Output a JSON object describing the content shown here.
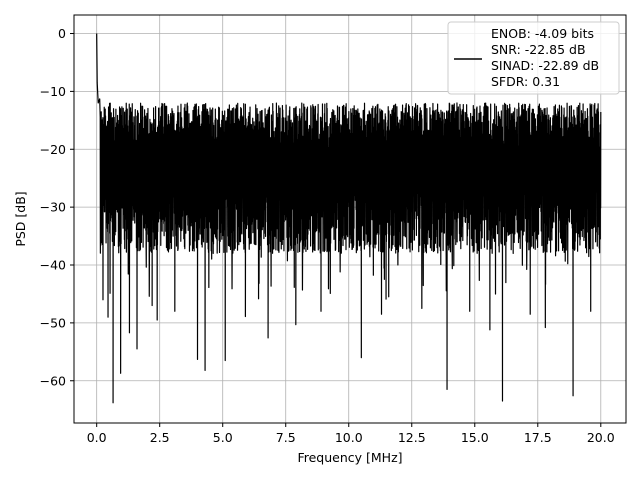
{
  "chart_data": {
    "type": "line",
    "title": "",
    "xlabel": "Frequency [MHz]",
    "ylabel": "PSD [dB]",
    "xlim": [
      -0.9,
      21.0
    ],
    "ylim": [
      -67.3,
      3.2
    ],
    "x_ticks": [
      0.0,
      2.5,
      5.0,
      7.5,
      10.0,
      12.5,
      15.0,
      17.5,
      20.0
    ],
    "x_tick_labels": [
      "0.0",
      "2.5",
      "5.0",
      "7.5",
      "10.0",
      "12.5",
      "15.0",
      "17.5",
      "20.0"
    ],
    "y_ticks": [
      0,
      -10,
      -20,
      -30,
      -40,
      -50,
      -60
    ],
    "y_tick_labels": [
      "0",
      "−10",
      "−20",
      "−30",
      "−40",
      "−50",
      "−60"
    ],
    "grid": true,
    "legend_position": "top-right",
    "line_color": "#000000",
    "series": [
      {
        "legend_lines": [
          "ENOB: -4.09 bits",
          "SNR: -22.85 dB",
          "SINAD: -22.89 dB",
          "SFDR: 0.31"
        ],
        "x_range": [
          0.0,
          20.0
        ],
        "noise_floor_band": [
          -38,
          -12
        ],
        "peaks": [
          {
            "x": 0.0,
            "y": 0.0
          },
          {
            "x": 0.02,
            "y": -8.5
          },
          {
            "x": 0.06,
            "y": -12.0
          },
          {
            "x": 0.12,
            "y": -11.3
          }
        ],
        "deep_dips": [
          {
            "x": 0.25,
            "y": -46.0
          },
          {
            "x": 0.45,
            "y": -49.0
          },
          {
            "x": 0.65,
            "y": -63.8
          },
          {
            "x": 0.95,
            "y": -58.7
          },
          {
            "x": 1.3,
            "y": -51.7
          },
          {
            "x": 1.6,
            "y": -54.5
          },
          {
            "x": 2.2,
            "y": -47.0
          },
          {
            "x": 2.4,
            "y": -49.5
          },
          {
            "x": 3.1,
            "y": -48.0
          },
          {
            "x": 4.0,
            "y": -56.3
          },
          {
            "x": 4.3,
            "y": -58.2
          },
          {
            "x": 5.1,
            "y": -56.5
          },
          {
            "x": 5.9,
            "y": -48.9
          },
          {
            "x": 6.8,
            "y": -52.6
          },
          {
            "x": 7.9,
            "y": -50.3
          },
          {
            "x": 8.9,
            "y": -48.0
          },
          {
            "x": 10.5,
            "y": -56.0
          },
          {
            "x": 11.3,
            "y": -48.5
          },
          {
            "x": 12.9,
            "y": -47.5
          },
          {
            "x": 13.9,
            "y": -61.5
          },
          {
            "x": 14.8,
            "y": -48.0
          },
          {
            "x": 15.6,
            "y": -51.2
          },
          {
            "x": 16.1,
            "y": -63.5
          },
          {
            "x": 17.2,
            "y": -48.5
          },
          {
            "x": 17.8,
            "y": -50.8
          },
          {
            "x": 18.9,
            "y": -62.6
          },
          {
            "x": 19.6,
            "y": -48.0
          }
        ]
      }
    ]
  }
}
